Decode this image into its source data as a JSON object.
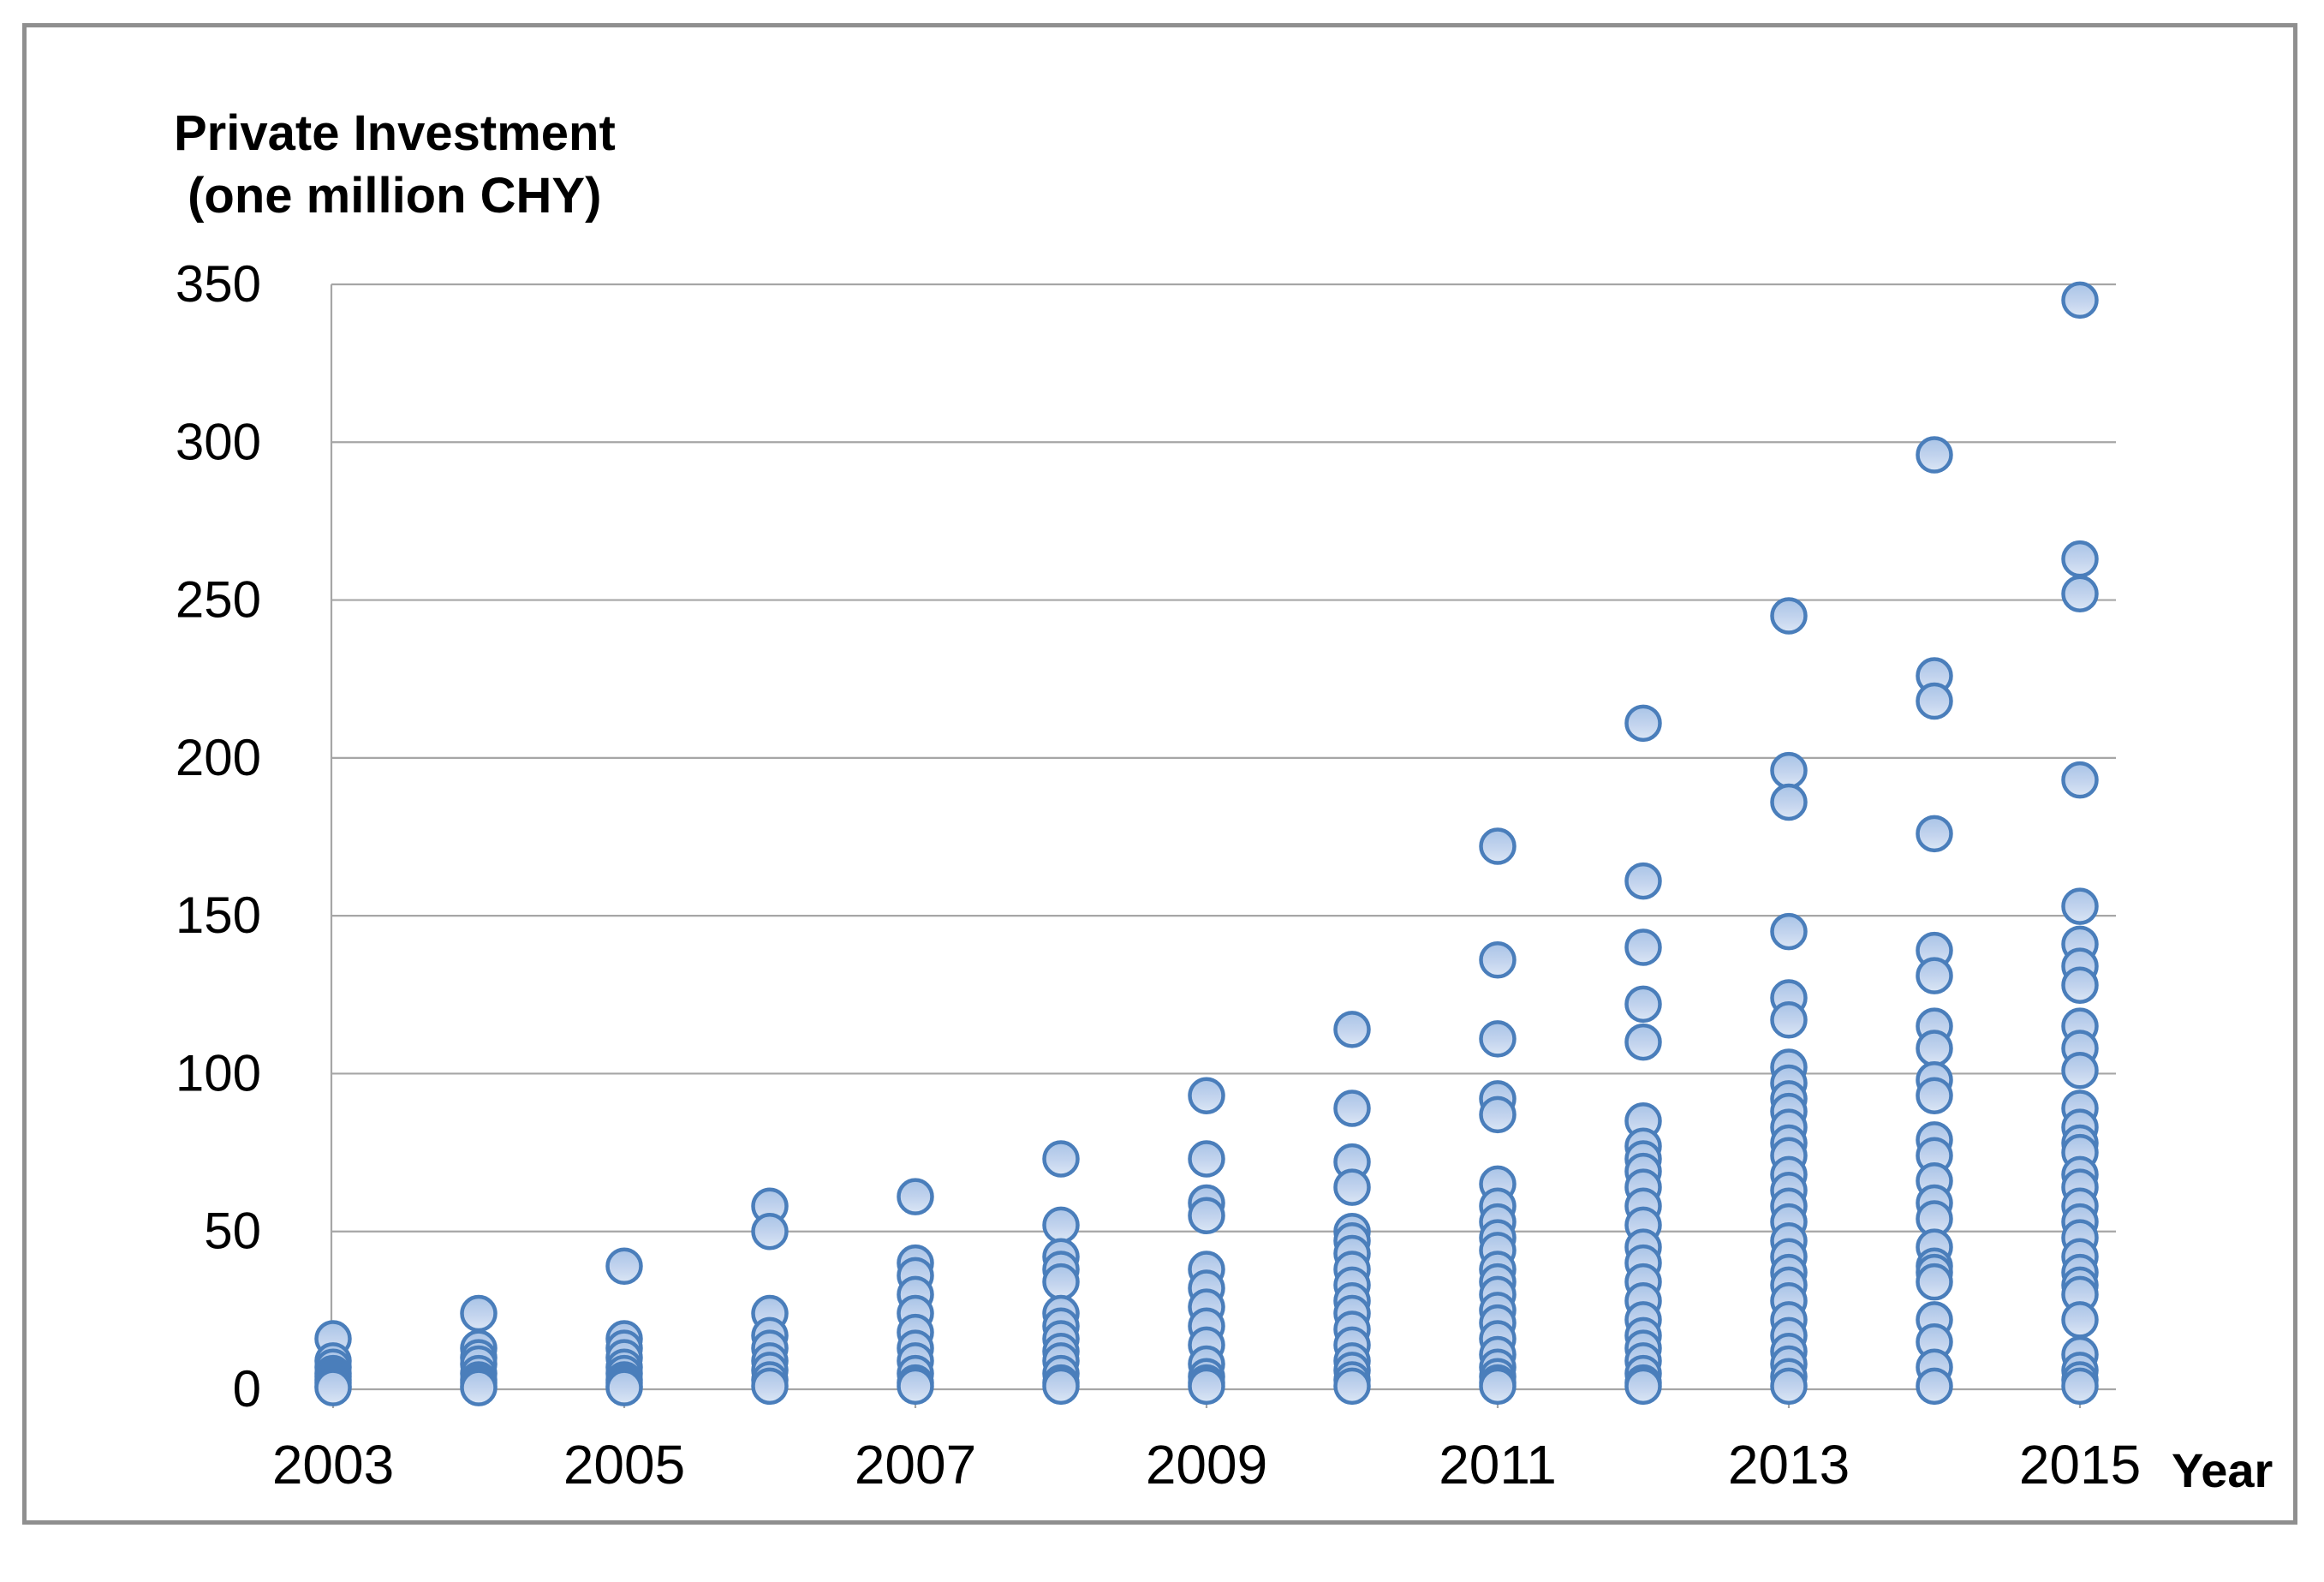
{
  "chart_data": {
    "type": "scatter",
    "title_line1": "Private Investment",
    "title_line2": " (one million CHY)",
    "xlabel": "Year",
    "ylabel": "Private Investment (one million CHY)",
    "ylim": [
      0,
      350
    ],
    "ytick_step": 50,
    "yticks": [
      350,
      300,
      250,
      200,
      150,
      100,
      50,
      0
    ],
    "x_labeled_years": [
      "2003",
      "2005",
      "2007",
      "2009",
      "2011",
      "2013",
      "2015"
    ],
    "grid": "horizontal-only",
    "legend": "none",
    "series": [
      {
        "year": 2003,
        "values": [
          16,
          9,
          7,
          5,
          4,
          3,
          2,
          1,
          0.5
        ]
      },
      {
        "year": 2004,
        "values": [
          24,
          13,
          10,
          8,
          5,
          3,
          2,
          1,
          0.5
        ]
      },
      {
        "year": 2005,
        "values": [
          39,
          16,
          13,
          10,
          7,
          5,
          3,
          2,
          1,
          0.5
        ]
      },
      {
        "year": 2006,
        "values": [
          58,
          50,
          24,
          17,
          13,
          9,
          6,
          3,
          1
        ]
      },
      {
        "year": 2007,
        "values": [
          61,
          40,
          36,
          30,
          24,
          18,
          13,
          9,
          5,
          2,
          1
        ]
      },
      {
        "year": 2008,
        "values": [
          73,
          52,
          42,
          38,
          34,
          24,
          20,
          16,
          12,
          9,
          5,
          2,
          1
        ]
      },
      {
        "year": 2009,
        "values": [
          93,
          73,
          59,
          55,
          38,
          32,
          26,
          20,
          14,
          8,
          4,
          2,
          1
        ]
      },
      {
        "year": 2010,
        "values": [
          114,
          89,
          72,
          64,
          50,
          47,
          43,
          38,
          33,
          28,
          24,
          19,
          14,
          9,
          6,
          3,
          1
        ]
      },
      {
        "year": 2011,
        "values": [
          172,
          136,
          111,
          92,
          87,
          65,
          58,
          53,
          48,
          44,
          38,
          34,
          30,
          25,
          21,
          16,
          11,
          7,
          4,
          2,
          1
        ]
      },
      {
        "year": 2012,
        "values": [
          211,
          161,
          140,
          122,
          110,
          85,
          77,
          73,
          69,
          64,
          58,
          52,
          45,
          40,
          34,
          28,
          22,
          17,
          13,
          9,
          5,
          2,
          1
        ]
      },
      {
        "year": 2013,
        "values": [
          245,
          196,
          186,
          145,
          124,
          117,
          102,
          97,
          92,
          88,
          83,
          78,
          74,
          68,
          63,
          58,
          53,
          47,
          42,
          37,
          33,
          28,
          22,
          17,
          12,
          8,
          4,
          1
        ]
      },
      {
        "year": 2014,
        "values": [
          296,
          226,
          218,
          176,
          139,
          131,
          115,
          108,
          98,
          93,
          79,
          74,
          66,
          59,
          54,
          45,
          39,
          37,
          34,
          22,
          15,
          7,
          1
        ]
      },
      {
        "year": 2015,
        "values": [
          345,
          263,
          252,
          193,
          153,
          141,
          134,
          128,
          115,
          108,
          101,
          89,
          83,
          78,
          75,
          68,
          64,
          58,
          53,
          48,
          42,
          37,
          33,
          30,
          22,
          11,
          6,
          3,
          1
        ]
      }
    ],
    "colors": {
      "marker_stroke": "#4a7ebb",
      "marker_fill_top": "#a9c4e7",
      "marker_fill_bottom": "#dbe6f5",
      "gridline": "#a6a6a6",
      "frame_border": "#8f8f8f",
      "text": "#000000"
    }
  }
}
